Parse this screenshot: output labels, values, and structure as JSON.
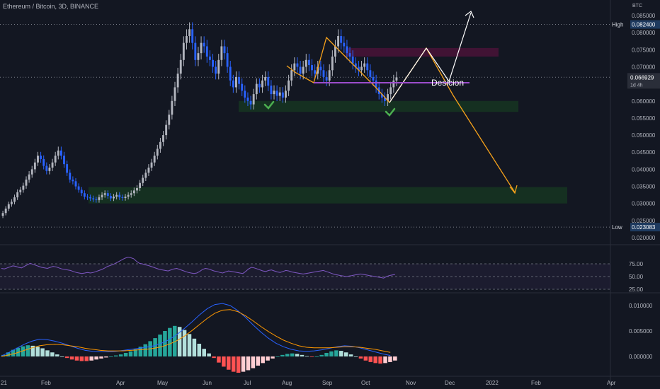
{
  "header": {
    "symbol": "Ethereum / Bitcoin, 3D, BINANCE"
  },
  "price_axis": {
    "unit": "BTC",
    "ticks": [
      "0.085000",
      "0.080000",
      "0.075000",
      "0.070000",
      "0.060000",
      "0.055000",
      "0.050000",
      "0.045000",
      "0.040000",
      "0.035000",
      "0.030000",
      "0.025000",
      "0.020000"
    ],
    "high_label": "High",
    "high_value": "0.082400",
    "low_label": "Low",
    "low_value": "0.023083",
    "current_value": "0.066929",
    "countdown": "1d 4h"
  },
  "rsi_axis": {
    "ticks": [
      "75.00",
      "50.00",
      "25.00"
    ]
  },
  "macd_axis": {
    "ticks": [
      "0.010000",
      "0.005000",
      "0.000000"
    ]
  },
  "time_axis": {
    "ticks": [
      "21",
      "Feb",
      "Apr",
      "May",
      "Jun",
      "Jul",
      "Aug",
      "Sep",
      "Oct",
      "Nov",
      "Dec",
      "2022",
      "Feb",
      "Apr"
    ]
  },
  "annotations": {
    "decision_label": "Desicion"
  },
  "colors": {
    "background": "#131722",
    "up": "#b2b5be",
    "down": "#2962ff",
    "rsi_line": "#7e57c2",
    "macd_line": "#2962ff",
    "signal_line": "#ff9800",
    "hist_pos_strong": "#26a69a",
    "hist_pos_weak": "#b2dfdb",
    "hist_neg_strong": "#ff5252",
    "hist_neg_weak": "#ffcdd2",
    "support_zone": "#1b5e20",
    "resistance_zone": "#880e4f",
    "projection_bear": "#f7a21b",
    "projection_bull": "#ffffff",
    "decision_line": "#9c4dcc"
  },
  "chart_data": [
    {
      "type": "candlestick",
      "title": "",
      "ylim": [
        0.0185,
        0.0875
      ],
      "x_range": [
        -1,
        296
      ],
      "candles_note": "3-day candles, index 0 = early Jan 2021",
      "close": [
        0.0272,
        0.0285,
        0.0298,
        0.0305,
        0.0318,
        0.0333,
        0.034,
        0.0352,
        0.037,
        0.0385,
        0.04,
        0.042,
        0.044,
        0.043,
        0.041,
        0.0395,
        0.0405,
        0.042,
        0.044,
        0.0455,
        0.044,
        0.0415,
        0.039,
        0.037,
        0.0365,
        0.035,
        0.034,
        0.033,
        0.032,
        0.0318,
        0.0315,
        0.0312,
        0.031,
        0.0318,
        0.0325,
        0.033,
        0.0322,
        0.0315,
        0.032,
        0.0325,
        0.0318,
        0.0316,
        0.032,
        0.0325,
        0.033,
        0.0338,
        0.0345,
        0.036,
        0.0375,
        0.039,
        0.0405,
        0.042,
        0.044,
        0.046,
        0.048,
        0.05,
        0.053,
        0.056,
        0.06,
        0.064,
        0.068,
        0.072,
        0.077,
        0.079,
        0.081,
        0.077,
        0.072,
        0.074,
        0.077,
        0.076,
        0.073,
        0.072,
        0.07,
        0.068,
        0.072,
        0.076,
        0.074,
        0.07,
        0.066,
        0.064,
        0.067,
        0.065,
        0.063,
        0.061,
        0.06,
        0.059,
        0.062,
        0.065,
        0.064,
        0.066,
        0.067,
        0.0645,
        0.062,
        0.063,
        0.0615,
        0.0625,
        0.061,
        0.063,
        0.066,
        0.069,
        0.071,
        0.07,
        0.068,
        0.07,
        0.072,
        0.0705,
        0.069,
        0.068,
        0.07,
        0.069,
        0.067,
        0.066,
        0.069,
        0.073,
        0.076,
        0.079,
        0.077,
        0.076,
        0.074,
        0.073,
        0.071,
        0.07,
        0.069,
        0.07,
        0.071,
        0.069,
        0.067,
        0.066,
        0.064,
        0.062,
        0.061,
        0.06,
        0.062,
        0.064,
        0.066,
        0.0669
      ],
      "note": "Ethereum / Bitcoin 3D closing prices reconstructed from the candlestick pane"
    },
    {
      "type": "line",
      "title": "",
      "ylim": [
        22,
        100
      ],
      "series": [
        {
          "values": [
            66,
            65,
            67,
            69,
            71,
            70,
            68,
            67,
            70,
            73,
            76,
            74,
            72,
            70,
            68,
            67,
            66,
            68,
            70,
            69,
            67,
            65,
            64,
            63,
            62,
            60,
            58,
            57,
            56,
            57,
            58,
            57,
            58,
            60,
            62,
            64,
            67,
            70,
            72,
            74,
            77,
            80,
            83,
            86,
            88,
            87,
            85,
            80,
            76,
            75,
            73,
            72,
            70,
            68,
            66,
            64,
            63,
            62,
            61,
            63,
            65,
            66,
            64,
            62,
            60,
            58,
            57,
            56,
            57,
            60,
            64,
            66,
            65,
            63,
            61,
            60,
            58,
            57,
            59,
            61,
            60,
            59,
            58,
            57,
            56,
            60,
            65,
            68,
            67,
            65,
            63,
            61,
            60,
            62,
            63,
            61,
            59,
            58,
            60,
            62,
            61,
            59,
            58,
            57,
            56,
            55,
            56,
            57,
            58,
            59,
            60,
            61,
            62,
            60,
            58,
            56,
            54,
            53,
            52,
            51,
            50,
            51,
            52,
            53,
            54,
            55,
            54,
            53,
            52,
            51,
            50,
            49,
            48,
            47,
            50,
            52,
            53,
            54
          ]
        }
      ],
      "reference_lines": [
        75,
        50,
        25
      ]
    },
    {
      "type": "bar",
      "title": "",
      "ylim": [
        -0.0022,
        0.0118
      ],
      "histogram": [
        0.0003,
        0.0008,
        0.0013,
        0.0017,
        0.002,
        0.0022,
        0.0021,
        0.0019,
        0.0016,
        0.0012,
        0.0008,
        0.0004,
        0.0,
        -0.0003,
        -0.0006,
        -0.0008,
        -0.0009,
        -0.0009,
        -0.0008,
        -0.0006,
        -0.0004,
        -0.0002,
        0.0,
        0.0002,
        0.0004,
        0.0007,
        0.001,
        0.0014,
        0.0019,
        0.0024,
        0.003,
        0.0036,
        0.0043,
        0.005,
        0.0056,
        0.006,
        0.0058,
        0.0052,
        0.0044,
        0.0035,
        0.0025,
        0.0015,
        0.0006,
        -0.0003,
        -0.0012,
        -0.002,
        -0.0026,
        -0.003,
        -0.0032,
        -0.003,
        -0.0027,
        -0.0023,
        -0.0018,
        -0.0013,
        -0.0008,
        -0.0004,
        0.0,
        0.0003,
        0.0005,
        0.0006,
        0.0005,
        0.0003,
        0.0001,
        -0.0001,
        0.0,
        0.0003,
        0.0007,
        0.001,
        0.0012,
        0.0011,
        0.0008,
        0.0004,
        0.0,
        -0.0004,
        -0.0008,
        -0.0011,
        -0.0013,
        -0.0014,
        -0.0013,
        -0.0011,
        -0.0008
      ],
      "macd": [
        0.0001,
        0.0008,
        0.0016,
        0.0024,
        0.003,
        0.0034,
        0.0033,
        0.003,
        0.0026,
        0.0021,
        0.0016,
        0.0012,
        0.001,
        0.0009,
        0.0009,
        0.001,
        0.0012,
        0.0014,
        0.0016,
        0.0018,
        0.0021,
        0.0026,
        0.0033,
        0.0043,
        0.0055,
        0.0068,
        0.0082,
        0.0094,
        0.0102,
        0.0104,
        0.01,
        0.009,
        0.0077,
        0.0062,
        0.0048,
        0.0036,
        0.0026,
        0.0019,
        0.0014,
        0.0011,
        0.001,
        0.0011,
        0.0013,
        0.0016,
        0.0019,
        0.0021,
        0.002,
        0.0017,
        0.0013,
        0.0009,
        0.0005,
        0.0002
      ],
      "signal": [
        0.0,
        0.0003,
        0.0007,
        0.0012,
        0.0017,
        0.0021,
        0.0023,
        0.0024,
        0.0023,
        0.0021,
        0.0019,
        0.0016,
        0.0014,
        0.0012,
        0.0011,
        0.0011,
        0.0011,
        0.0012,
        0.0013,
        0.0014,
        0.0016,
        0.0019,
        0.0024,
        0.0031,
        0.004,
        0.0051,
        0.0063,
        0.0075,
        0.0085,
        0.0091,
        0.0092,
        0.0088,
        0.008,
        0.007,
        0.0059,
        0.0049,
        0.004,
        0.0032,
        0.0026,
        0.0021,
        0.0018,
        0.0017,
        0.0017,
        0.0017,
        0.0018,
        0.0019,
        0.0019,
        0.0018,
        0.0016,
        0.0014,
        0.0011,
        0.0008
      ],
      "note": "MACD pane: histogram, MACD line, signal line"
    }
  ]
}
